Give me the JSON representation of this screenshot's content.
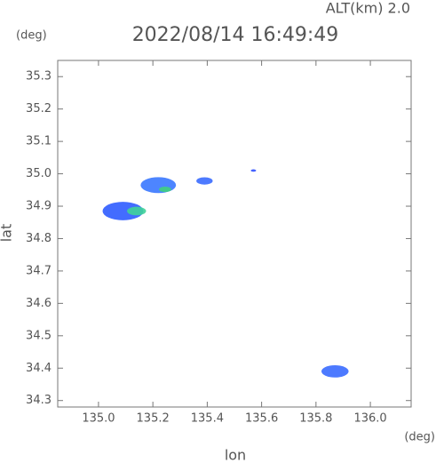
{
  "chart_data": {
    "type": "scatter",
    "title": "2022/08/14 16:49:49",
    "subtitle": "ALT(km) 2.0",
    "y_unit": "(deg)",
    "x_unit": "(deg)",
    "xlabel": "lon",
    "ylabel": "lat",
    "xlim": [
      134.85,
      136.15
    ],
    "ylim": [
      34.28,
      35.35
    ],
    "xticks": [
      {
        "value": 135.0,
        "label": "135.0"
      },
      135.2,
      135.4,
      135.6,
      135.8,
      {
        "value": 136.0,
        "label": "136.0"
      }
    ],
    "yticks": [
      34.3,
      34.4,
      34.5,
      34.6,
      34.7,
      34.8,
      34.9,
      {
        "value": 35.0,
        "label": "35.0"
      },
      35.1,
      35.2,
      35.3
    ],
    "x": [
      135.09,
      135.14,
      135.22,
      135.245,
      135.39,
      135.57,
      135.87
    ],
    "y": [
      34.885,
      34.885,
      34.965,
      34.952,
      34.978,
      35.01,
      34.39
    ],
    "sizes": [
      0.15,
      0.07,
      0.13,
      0.045,
      0.06,
      0.02,
      0.1
    ],
    "colors": [
      "#2f5cff",
      "#40d39a",
      "#3a78ff",
      "#40d080",
      "#3a6cff",
      "#3050ff",
      "#3a6cff"
    ]
  }
}
